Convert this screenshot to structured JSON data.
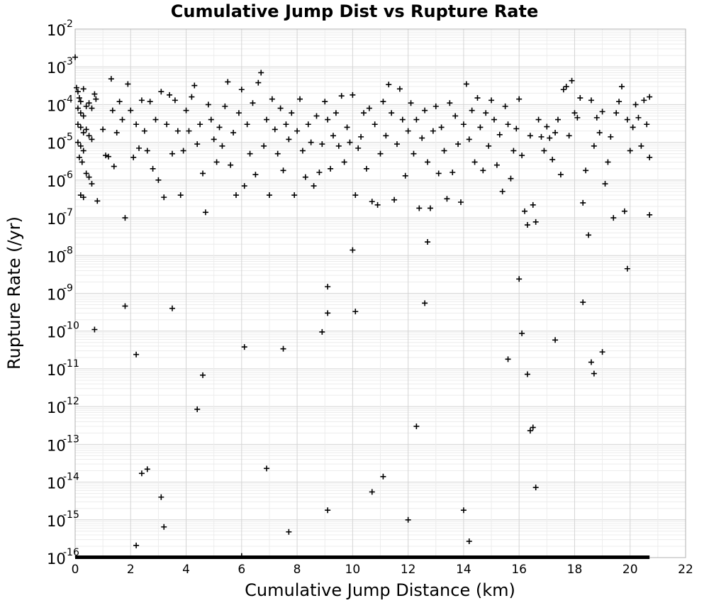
{
  "chart_data": {
    "type": "scatter",
    "title": "Cumulative Jump Dist vs Rupture Rate",
    "xlabel": "Cumulative Jump Distance (km)",
    "ylabel": "Rupture Rate (/yr)",
    "xlim": [
      0,
      22
    ],
    "ylim": [
      1e-16,
      0.01
    ],
    "yscale": "log",
    "grid": true,
    "marker": "+",
    "marker_color": "#000000",
    "x_ticks": [
      "0",
      "2",
      "4",
      "6",
      "8",
      "10",
      "12",
      "14",
      "16",
      "18",
      "20",
      "22"
    ],
    "y_ticks": [
      {
        "base": "10",
        "exp": "-2"
      },
      {
        "base": "10",
        "exp": "-3"
      },
      {
        "base": "10",
        "exp": "-4"
      },
      {
        "base": "10",
        "exp": "-5"
      },
      {
        "base": "10",
        "exp": "-6"
      },
      {
        "base": "10",
        "exp": "-7"
      },
      {
        "base": "10",
        "exp": "-8"
      },
      {
        "base": "10",
        "exp": "-9"
      },
      {
        "base": "10",
        "exp": "-10"
      },
      {
        "base": "10",
        "exp": "-11"
      },
      {
        "base": "10",
        "exp": "-12"
      },
      {
        "base": "10",
        "exp": "-13"
      },
      {
        "base": "10",
        "exp": "-14"
      },
      {
        "base": "10",
        "exp": "-15"
      },
      {
        "base": "10",
        "exp": "-16"
      }
    ],
    "floor_band": {
      "x_range": [
        0,
        20.7
      ],
      "y": 1e-16
    },
    "points": [
      [
        0,
        0.0018
      ],
      [
        0.05,
        0.00028
      ],
      [
        0.1,
        0.00022
      ],
      [
        0.15,
        0.00015
      ],
      [
        0.2,
        0.00012
      ],
      [
        0.3,
        0.00026
      ],
      [
        0.1,
        8e-05
      ],
      [
        0.2,
        6e-05
      ],
      [
        0.3,
        5e-05
      ],
      [
        0.4,
        9e-05
      ],
      [
        0.5,
        0.00011
      ],
      [
        0.6,
        8e-05
      ],
      [
        0.7,
        0.00019
      ],
      [
        0.75,
        0.00014
      ],
      [
        0.1,
        3e-05
      ],
      [
        0.2,
        2.5e-05
      ],
      [
        0.3,
        1.8e-05
      ],
      [
        0.4,
        2.2e-05
      ],
      [
        0.5,
        1.5e-05
      ],
      [
        0.6,
        1.2e-05
      ],
      [
        0.1,
        1e-05
      ],
      [
        0.2,
        8e-06
      ],
      [
        0.3,
        6e-06
      ],
      [
        0.15,
        4e-06
      ],
      [
        0.25,
        3e-06
      ],
      [
        0.4,
        1.5e-06
      ],
      [
        0.5,
        1.2e-06
      ],
      [
        0.6,
        8e-07
      ],
      [
        0.2,
        4e-07
      ],
      [
        0.3,
        3.5e-07
      ],
      [
        0.8,
        2.8e-07
      ],
      [
        1.0,
        2.2e-05
      ],
      [
        1.1,
        4.5e-06
      ],
      [
        1.2,
        4.2e-06
      ],
      [
        1.3,
        0.00048
      ],
      [
        1.35,
        7e-05
      ],
      [
        1.4,
        2.3e-06
      ],
      [
        1.5,
        1.8e-05
      ],
      [
        1.6,
        0.00012
      ],
      [
        1.7,
        4e-05
      ],
      [
        1.8,
        1e-07
      ],
      [
        1.9,
        0.00035
      ],
      [
        2.0,
        7e-05
      ],
      [
        2.1,
        4e-06
      ],
      [
        2.2,
        3e-05
      ],
      [
        2.3,
        7e-06
      ],
      [
        2.4,
        0.00013
      ],
      [
        2.5,
        2e-05
      ],
      [
        2.6,
        6e-06
      ],
      [
        2.7,
        0.00012
      ],
      [
        2.8,
        2e-06
      ],
      [
        2.9,
        4e-05
      ],
      [
        3.0,
        1e-06
      ],
      [
        3.1,
        0.00022
      ],
      [
        3.2,
        3.5e-07
      ],
      [
        3.3,
        3e-05
      ],
      [
        3.4,
        0.00018
      ],
      [
        3.5,
        5e-06
      ],
      [
        3.6,
        0.00013
      ],
      [
        3.7,
        2e-05
      ],
      [
        3.8,
        4e-07
      ],
      [
        3.9,
        6e-06
      ],
      [
        4.0,
        7e-05
      ],
      [
        4.1,
        2e-05
      ],
      [
        4.2,
        0.00016
      ],
      [
        4.3,
        0.00032
      ],
      [
        4.4,
        9e-06
      ],
      [
        4.5,
        3e-05
      ],
      [
        4.6,
        1.5e-06
      ],
      [
        4.7,
        1.4e-07
      ],
      [
        4.8,
        0.0001
      ],
      [
        4.9,
        4e-05
      ],
      [
        5.0,
        1.2e-05
      ],
      [
        5.1,
        3e-06
      ],
      [
        5.2,
        2.5e-05
      ],
      [
        5.3,
        8e-06
      ],
      [
        5.4,
        9e-05
      ],
      [
        5.5,
        0.0004
      ],
      [
        5.6,
        2.5e-06
      ],
      [
        5.7,
        1.8e-05
      ],
      [
        5.8,
        4e-07
      ],
      [
        5.9,
        6e-05
      ],
      [
        6.0,
        0.00025
      ],
      [
        6.1,
        7e-07
      ],
      [
        6.2,
        3e-05
      ],
      [
        6.3,
        5e-06
      ],
      [
        6.4,
        0.00011
      ],
      [
        6.5,
        1.4e-06
      ],
      [
        6.6,
        0.00038
      ],
      [
        6.7,
        0.0007
      ],
      [
        6.8,
        8e-06
      ],
      [
        6.9,
        4e-05
      ],
      [
        7.0,
        4e-07
      ],
      [
        7.1,
        0.00014
      ],
      [
        7.2,
        2.2e-05
      ],
      [
        7.3,
        5e-06
      ],
      [
        7.4,
        8e-05
      ],
      [
        7.5,
        1.8e-06
      ],
      [
        7.6,
        3e-05
      ],
      [
        7.7,
        1.2e-05
      ],
      [
        7.8,
        6e-05
      ],
      [
        7.9,
        4e-07
      ],
      [
        8.0,
        2e-05
      ],
      [
        8.1,
        0.00014
      ],
      [
        8.2,
        6e-06
      ],
      [
        8.3,
        1.2e-06
      ],
      [
        8.4,
        3e-05
      ],
      [
        8.5,
        1e-05
      ],
      [
        8.6,
        7e-07
      ],
      [
        8.7,
        5e-05
      ],
      [
        8.8,
        1.6e-06
      ],
      [
        8.9,
        9e-06
      ],
      [
        9.0,
        0.00012
      ],
      [
        9.1,
        4e-05
      ],
      [
        9.2,
        2e-06
      ],
      [
        9.3,
        1.5e-05
      ],
      [
        9.4,
        6e-05
      ],
      [
        9.5,
        8e-06
      ],
      [
        9.6,
        0.00017
      ],
      [
        9.7,
        3e-06
      ],
      [
        9.8,
        2.5e-05
      ],
      [
        9.9,
        1e-05
      ],
      [
        10.0,
        0.00018
      ],
      [
        10.1,
        4e-07
      ],
      [
        10.2,
        7e-06
      ],
      [
        10.3,
        1.4e-05
      ],
      [
        10.4,
        6e-05
      ],
      [
        10.5,
        2e-06
      ],
      [
        10.6,
        8e-05
      ],
      [
        10.7,
        2.7e-07
      ],
      [
        10.8,
        3e-05
      ],
      [
        10.9,
        2.2e-07
      ],
      [
        11.0,
        5e-06
      ],
      [
        11.1,
        0.00012
      ],
      [
        11.2,
        1.5e-05
      ],
      [
        11.3,
        0.00034
      ],
      [
        11.4,
        6e-05
      ],
      [
        11.5,
        3e-07
      ],
      [
        11.6,
        9e-06
      ],
      [
        11.7,
        0.00026
      ],
      [
        11.8,
        4e-05
      ],
      [
        11.9,
        1.3e-06
      ],
      [
        12.0,
        2e-05
      ],
      [
        12.1,
        0.00011
      ],
      [
        12.2,
        5e-06
      ],
      [
        12.3,
        4e-05
      ],
      [
        12.4,
        1.8e-07
      ],
      [
        12.5,
        1.3e-05
      ],
      [
        12.6,
        7e-05
      ],
      [
        12.7,
        3e-06
      ],
      [
        12.8,
        1.8e-07
      ],
      [
        12.9,
        2e-05
      ],
      [
        13.0,
        9e-05
      ],
      [
        13.1,
        1.5e-06
      ],
      [
        13.2,
        2.5e-05
      ],
      [
        13.3,
        6e-06
      ],
      [
        13.4,
        3.2e-07
      ],
      [
        13.5,
        0.00011
      ],
      [
        13.6,
        1.6e-06
      ],
      [
        13.7,
        5e-05
      ],
      [
        13.8,
        9e-06
      ],
      [
        13.9,
        2.6e-07
      ],
      [
        14.0,
        3e-05
      ],
      [
        14.1,
        0.00035
      ],
      [
        14.2,
        1.2e-05
      ],
      [
        14.3,
        7e-05
      ],
      [
        14.4,
        3e-06
      ],
      [
        14.5,
        0.00015
      ],
      [
        14.6,
        2.5e-05
      ],
      [
        14.7,
        1.8e-06
      ],
      [
        14.8,
        6e-05
      ],
      [
        14.9,
        8e-06
      ],
      [
        15.0,
        0.00013
      ],
      [
        15.1,
        4e-05
      ],
      [
        15.2,
        2.5e-06
      ],
      [
        15.3,
        1.6e-05
      ],
      [
        15.4,
        5e-07
      ],
      [
        15.5,
        9e-05
      ],
      [
        15.6,
        3e-05
      ],
      [
        15.7,
        1.1e-06
      ],
      [
        15.8,
        6e-06
      ],
      [
        15.9,
        2.3e-05
      ],
      [
        16.0,
        0.00014
      ],
      [
        16.1,
        4.5e-06
      ],
      [
        16.2,
        1.5e-07
      ],
      [
        16.3,
        6.5e-08
      ],
      [
        16.4,
        1.5e-05
      ],
      [
        16.5,
        2.2e-07
      ],
      [
        16.6,
        7.8e-08
      ],
      [
        16.7,
        4e-05
      ],
      [
        16.8,
        1.4e-05
      ],
      [
        16.9,
        6e-06
      ],
      [
        17.0,
        2.6e-05
      ],
      [
        17.1,
        1.3e-05
      ],
      [
        17.2,
        3.5e-06
      ],
      [
        17.3,
        1.8e-05
      ],
      [
        17.4,
        4e-05
      ],
      [
        17.5,
        1.4e-06
      ],
      [
        17.6,
        0.00025
      ],
      [
        17.7,
        0.0003
      ],
      [
        17.8,
        1.5e-05
      ],
      [
        17.9,
        0.00043
      ],
      [
        18.0,
        6e-05
      ],
      [
        18.1,
        4.5e-05
      ],
      [
        18.2,
        0.00015
      ],
      [
        18.3,
        2.5e-07
      ],
      [
        18.4,
        1.8e-06
      ],
      [
        18.5,
        3.5e-08
      ],
      [
        18.6,
        0.00013
      ],
      [
        18.7,
        8e-06
      ],
      [
        18.8,
        4.5e-05
      ],
      [
        18.9,
        1.8e-05
      ],
      [
        19.0,
        6.5e-05
      ],
      [
        19.1,
        8e-07
      ],
      [
        19.2,
        3e-06
      ],
      [
        19.3,
        1.4e-05
      ],
      [
        19.4,
        1e-07
      ],
      [
        19.5,
        6e-05
      ],
      [
        19.6,
        0.00012
      ],
      [
        19.7,
        0.0003
      ],
      [
        19.8,
        1.5e-07
      ],
      [
        19.9,
        4e-05
      ],
      [
        20.0,
        6e-06
      ],
      [
        20.1,
        2.5e-05
      ],
      [
        20.2,
        0.0001
      ],
      [
        20.3,
        4.5e-05
      ],
      [
        20.4,
        8e-06
      ],
      [
        20.5,
        0.00013
      ],
      [
        20.6,
        3e-05
      ],
      [
        20.7,
        1.2e-07
      ],
      [
        20.7,
        4e-06
      ],
      [
        20.7,
        0.00016
      ],
      [
        10.0,
        1.4e-08
      ],
      [
        12.7,
        2.3e-08
      ],
      [
        19.9,
        4.5e-09
      ],
      [
        9.1,
        1.5e-09
      ],
      [
        16.0,
        2.4e-09
      ],
      [
        1.8,
        4.6e-10
      ],
      [
        3.5,
        4e-10
      ],
      [
        9.1,
        3e-10
      ],
      [
        10.1,
        3.3e-10
      ],
      [
        12.6,
        5.5e-10
      ],
      [
        18.3,
        5.8e-10
      ],
      [
        0.7,
        1.1e-10
      ],
      [
        8.9,
        9.5e-11
      ],
      [
        16.1,
        8.7e-11
      ],
      [
        17.3,
        5.8e-11
      ],
      [
        6.1,
        3.8e-11
      ],
      [
        7.5,
        3.4e-11
      ],
      [
        19.0,
        2.8e-11
      ],
      [
        2.2,
        2.4e-11
      ],
      [
        15.6,
        1.8e-11
      ],
      [
        18.6,
        1.5e-11
      ],
      [
        4.6,
        6.8e-12
      ],
      [
        16.3,
        7.2e-12
      ],
      [
        18.7,
        7.5e-12
      ],
      [
        4.4,
        8.5e-13
      ],
      [
        12.3,
        3e-13
      ],
      [
        16.5,
        2.8e-13
      ],
      [
        16.4,
        2.3e-13
      ],
      [
        2.6,
        2.2e-14
      ],
      [
        6.9,
        2.3e-14
      ],
      [
        2.4,
        1.7e-14
      ],
      [
        11.1,
        1.4e-14
      ],
      [
        16.6,
        7.2e-15
      ],
      [
        10.7,
        5.5e-15
      ],
      [
        3.1,
        4e-15
      ],
      [
        9.1,
        1.8e-15
      ],
      [
        14.0,
        1.8e-15
      ],
      [
        12.0,
        1e-15
      ],
      [
        3.2,
        6.5e-16
      ],
      [
        7.7,
        4.8e-16
      ],
      [
        2.2,
        2.1e-16
      ],
      [
        14.2,
        2.7e-16
      ],
      [
        6.0,
        1.1e-16
      ]
    ]
  }
}
